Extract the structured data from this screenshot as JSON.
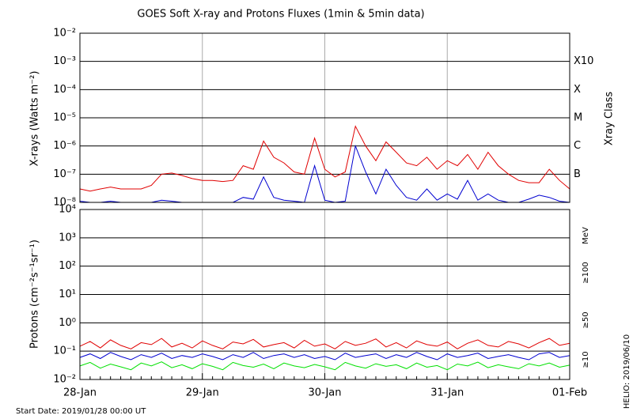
{
  "chart_data": [
    {
      "type": "line",
      "title": "GOES Soft X-ray and Protons Fluxes   (1min & 5min data)",
      "y_label": "X-rays (Watts m⁻²)",
      "y2_label": "Xray Class",
      "log_scale": true,
      "grid": true,
      "ylim": [
        1e-08,
        0.01
      ],
      "yticks": [
        {
          "value": 1e-08,
          "label": "10⁻⁸"
        },
        {
          "value": 1e-07,
          "label": "10⁻⁷"
        },
        {
          "value": 1e-06,
          "label": "10⁻⁶"
        },
        {
          "value": 1e-05,
          "label": "10⁻⁵"
        },
        {
          "value": 0.0001,
          "label": "10⁻⁴"
        },
        {
          "value": 0.001,
          "label": "10⁻³"
        },
        {
          "value": 0.01,
          "label": "10⁻²"
        }
      ],
      "class_labels": [
        {
          "value": 0.001,
          "label": "X10"
        },
        {
          "value": 0.0001,
          "label": "X"
        },
        {
          "value": 1e-05,
          "label": "M"
        },
        {
          "value": 1e-06,
          "label": "C"
        },
        {
          "value": 1e-07,
          "label": "B"
        }
      ],
      "series": [
        {
          "color": "#e00000",
          "values": [
            3e-08,
            2.5e-08,
            3e-08,
            3.5e-08,
            3e-08,
            3e-08,
            3e-08,
            4e-08,
            1e-07,
            1.1e-07,
            9e-08,
            7e-08,
            6e-08,
            6e-08,
            5.5e-08,
            6e-08,
            2e-07,
            1.5e-07,
            1.5e-06,
            4e-07,
            2.5e-07,
            1.2e-07,
            1e-07,
            1.9e-06,
            1.5e-07,
            8e-08,
            1.2e-07,
            5e-06,
            1e-06,
            3e-07,
            1.4e-06,
            6e-07,
            2.5e-07,
            2e-07,
            4e-07,
            1.5e-07,
            3e-07,
            2e-07,
            5e-07,
            1.5e-07,
            6e-07,
            2e-07,
            1e-07,
            6e-08,
            5e-08,
            5e-08,
            1.5e-07,
            6e-08,
            3e-08
          ]
        },
        {
          "color": "#0000d0",
          "values": [
            1.1e-08,
            1e-08,
            1e-08,
            1.1e-08,
            1e-08,
            1e-08,
            1e-08,
            1e-08,
            1.2e-08,
            1.1e-08,
            1e-08,
            1e-08,
            1e-08,
            1e-08,
            1e-08,
            1e-08,
            1.5e-08,
            1.3e-08,
            8e-08,
            1.5e-08,
            1.2e-08,
            1.1e-08,
            1e-08,
            2e-07,
            1.2e-08,
            1e-08,
            1.1e-08,
            1e-06,
            1.2e-07,
            2e-08,
            1.5e-07,
            4e-08,
            1.5e-08,
            1.2e-08,
            3e-08,
            1.2e-08,
            2e-08,
            1.3e-08,
            6e-08,
            1.2e-08,
            2e-08,
            1.2e-08,
            1e-08,
            1e-08,
            1.3e-08,
            1.8e-08,
            1.5e-08,
            1.1e-08,
            1e-08
          ]
        }
      ]
    },
    {
      "type": "line",
      "y_label": "Protons (cm⁻²s⁻¹sr⁻¹)",
      "unit_label": "MeV",
      "log_scale": true,
      "grid": true,
      "ylim": [
        0.01,
        10000
      ],
      "threshold": 10,
      "yticks": [
        {
          "value": 0.01,
          "label": "10⁻²"
        },
        {
          "value": 0.1,
          "label": "10⁻¹"
        },
        {
          "value": 1,
          "label": "10⁰"
        },
        {
          "value": 10,
          "label": "10¹"
        },
        {
          "value": 100,
          "label": "10²"
        },
        {
          "value": 1000,
          "label": "10³"
        },
        {
          "value": 10000,
          "label": "10⁴"
        }
      ],
      "categories": [
        "28-Jan",
        null,
        null,
        null,
        null,
        null,
        null,
        null,
        null,
        null,
        null,
        null,
        "29-Jan",
        null,
        null,
        null,
        null,
        null,
        null,
        null,
        null,
        null,
        null,
        null,
        "30-Jan",
        null,
        null,
        null,
        null,
        null,
        null,
        null,
        null,
        null,
        null,
        null,
        "31-Jan",
        null,
        null,
        null,
        null,
        null,
        null,
        null,
        null,
        null,
        null,
        null,
        "01-Feb"
      ],
      "series": [
        {
          "name": "≥10",
          "color": "#e00000",
          "values": [
            0.15,
            0.22,
            0.13,
            0.25,
            0.16,
            0.12,
            0.2,
            0.17,
            0.28,
            0.14,
            0.19,
            0.13,
            0.23,
            0.16,
            0.12,
            0.21,
            0.18,
            0.26,
            0.14,
            0.17,
            0.2,
            0.13,
            0.24,
            0.15,
            0.18,
            0.12,
            0.22,
            0.16,
            0.19,
            0.27,
            0.14,
            0.2,
            0.13,
            0.23,
            0.17,
            0.15,
            0.21,
            0.12,
            0.19,
            0.25,
            0.16,
            0.14,
            0.22,
            0.18,
            0.13,
            0.2,
            0.28,
            0.16,
            0.19
          ]
        },
        {
          "name": "≥50",
          "color": "#0000d0",
          "values": [
            0.06,
            0.08,
            0.055,
            0.09,
            0.065,
            0.05,
            0.075,
            0.06,
            0.085,
            0.055,
            0.07,
            0.06,
            0.08,
            0.065,
            0.05,
            0.075,
            0.06,
            0.09,
            0.055,
            0.07,
            0.08,
            0.06,
            0.075,
            0.055,
            0.065,
            0.05,
            0.085,
            0.06,
            0.07,
            0.08,
            0.055,
            0.075,
            0.06,
            0.09,
            0.065,
            0.05,
            0.08,
            0.06,
            0.07,
            0.085,
            0.055,
            0.065,
            0.075,
            0.06,
            0.05,
            0.08,
            0.09,
            0.06,
            0.07
          ]
        },
        {
          "name": "≥100",
          "color": "#00e000",
          "values": [
            0.03,
            0.04,
            0.025,
            0.035,
            0.028,
            0.022,
            0.038,
            0.03,
            0.042,
            0.026,
            0.033,
            0.024,
            0.036,
            0.029,
            0.022,
            0.04,
            0.031,
            0.027,
            0.035,
            0.024,
            0.038,
            0.03,
            0.026,
            0.034,
            0.028,
            0.022,
            0.04,
            0.03,
            0.025,
            0.036,
            0.029,
            0.033,
            0.024,
            0.038,
            0.027,
            0.031,
            0.022,
            0.035,
            0.03,
            0.041,
            0.026,
            0.033,
            0.028,
            0.024,
            0.036,
            0.03,
            0.038,
            0.027,
            0.032
          ]
        }
      ]
    }
  ],
  "footer": "Start Date: 2019/01/28 00:00 UT",
  "side_note": "HELIO: 2019/06/10"
}
